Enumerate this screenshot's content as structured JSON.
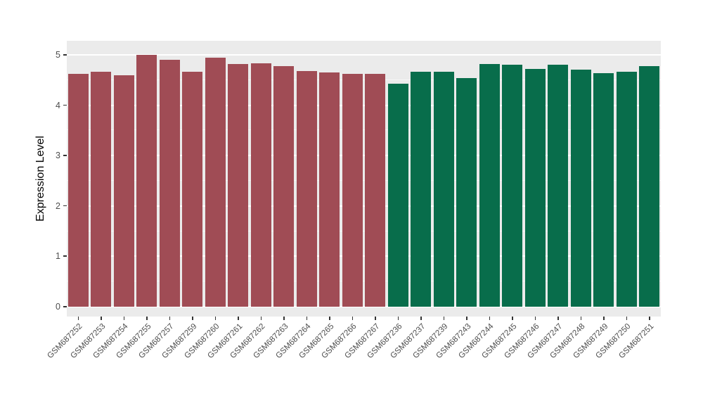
{
  "chart_data": {
    "type": "bar",
    "title": "",
    "xlabel": "",
    "ylabel": "Expression Level",
    "ylim": [
      0,
      5
    ],
    "yticks": [
      0,
      1,
      2,
      3,
      4,
      5
    ],
    "grid": "major-and-minor",
    "legend_position": "none",
    "panel_background": "#EBEBEB",
    "gridline_color": "#FFFFFF",
    "group_colors": {
      "group1": "#A04C55",
      "group2": "#086D4B"
    },
    "categories": [
      "GSM687252",
      "GSM687253",
      "GSM687254",
      "GSM687255",
      "GSM687257",
      "GSM687259",
      "GSM687260",
      "GSM687261",
      "GSM687262",
      "GSM687263",
      "GSM687264",
      "GSM687265",
      "GSM687266",
      "GSM687267",
      "GSM687236",
      "GSM687237",
      "GSM687239",
      "GSM687243",
      "GSM687244",
      "GSM687245",
      "GSM687246",
      "GSM687247",
      "GSM687248",
      "GSM687249",
      "GSM687250",
      "GSM687251"
    ],
    "values": [
      4.62,
      4.66,
      4.59,
      5.0,
      4.9,
      4.67,
      4.94,
      4.82,
      4.83,
      4.77,
      4.68,
      4.65,
      4.62,
      4.62,
      4.43,
      4.66,
      4.66,
      4.54,
      4.82,
      4.81,
      4.72,
      4.8,
      4.7,
      4.64,
      4.66,
      4.77
    ],
    "bar_groups": [
      "group1",
      "group1",
      "group1",
      "group1",
      "group1",
      "group1",
      "group1",
      "group1",
      "group1",
      "group1",
      "group1",
      "group1",
      "group1",
      "group1",
      "group2",
      "group2",
      "group2",
      "group2",
      "group2",
      "group2",
      "group2",
      "group2",
      "group2",
      "group2",
      "group2",
      "group2"
    ]
  }
}
